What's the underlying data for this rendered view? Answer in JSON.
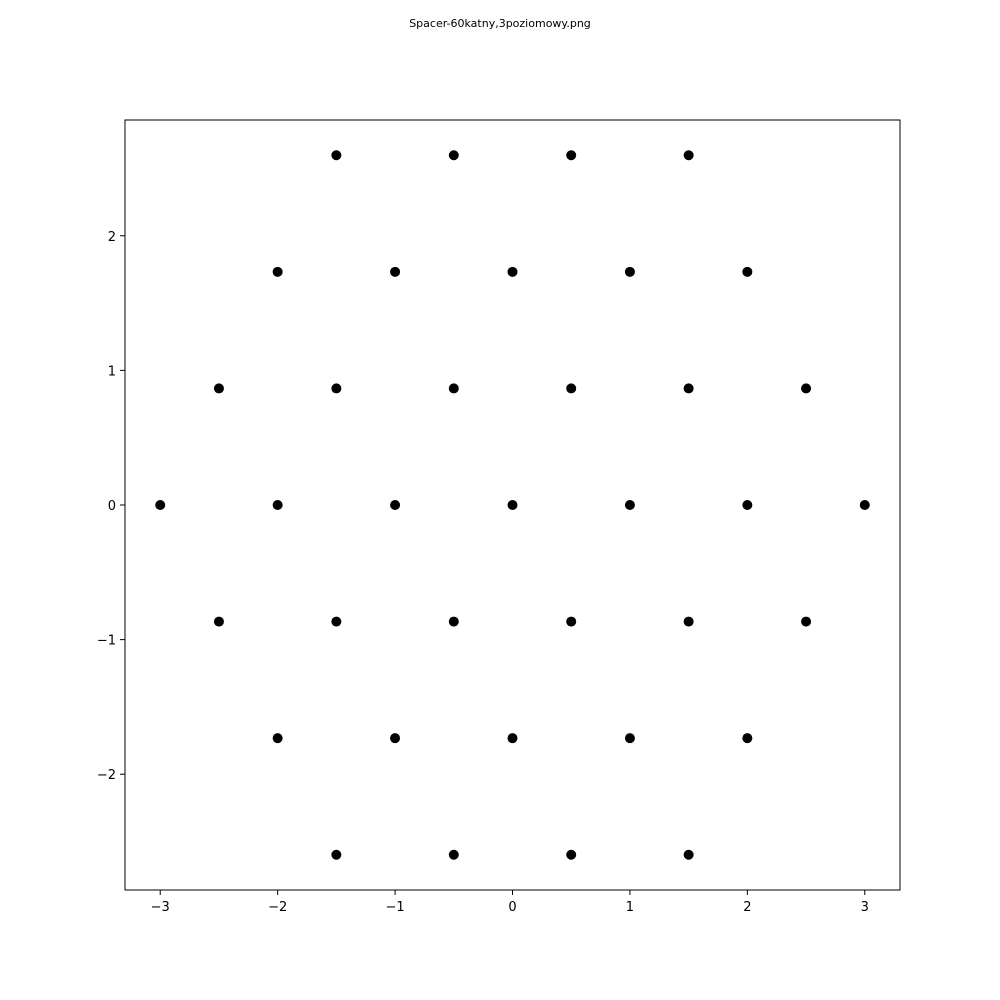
{
  "chart_data": {
    "type": "scatter",
    "title": "Spacer-60katny,3poziomowy.png",
    "xlabel": "",
    "ylabel": "",
    "xlim": [
      -3.3,
      3.3
    ],
    "ylim": [
      -2.86,
      2.86
    ],
    "grid": false,
    "marker_color": "#000000",
    "x_ticks": [
      {
        "value": -3,
        "label": "−3"
      },
      {
        "value": -2,
        "label": "−2"
      },
      {
        "value": -1,
        "label": "−1"
      },
      {
        "value": 0,
        "label": "0"
      },
      {
        "value": 1,
        "label": "1"
      },
      {
        "value": 2,
        "label": "2"
      },
      {
        "value": 3,
        "label": "3"
      }
    ],
    "y_ticks": [
      {
        "value": -2,
        "label": "−2"
      },
      {
        "value": -1,
        "label": "−1"
      },
      {
        "value": 0,
        "label": "0"
      },
      {
        "value": 1,
        "label": "1"
      },
      {
        "value": 2,
        "label": "2"
      }
    ],
    "points": [
      {
        "x": -1.5,
        "y": 2.598
      },
      {
        "x": -0.5,
        "y": 2.598
      },
      {
        "x": 0.5,
        "y": 2.598
      },
      {
        "x": 1.5,
        "y": 2.598
      },
      {
        "x": -2,
        "y": 1.732
      },
      {
        "x": -1,
        "y": 1.732
      },
      {
        "x": 0,
        "y": 1.732
      },
      {
        "x": 1,
        "y": 1.732
      },
      {
        "x": 2,
        "y": 1.732
      },
      {
        "x": -2.5,
        "y": 0.866
      },
      {
        "x": -1.5,
        "y": 0.866
      },
      {
        "x": -0.5,
        "y": 0.866
      },
      {
        "x": 0.5,
        "y": 0.866
      },
      {
        "x": 1.5,
        "y": 0.866
      },
      {
        "x": 2.5,
        "y": 0.866
      },
      {
        "x": -3,
        "y": 0
      },
      {
        "x": -2,
        "y": 0
      },
      {
        "x": -1,
        "y": 0
      },
      {
        "x": 0,
        "y": 0
      },
      {
        "x": 1,
        "y": 0
      },
      {
        "x": 2,
        "y": 0
      },
      {
        "x": 3,
        "y": 0
      },
      {
        "x": -2.5,
        "y": -0.866
      },
      {
        "x": -1.5,
        "y": -0.866
      },
      {
        "x": -0.5,
        "y": -0.866
      },
      {
        "x": 0.5,
        "y": -0.866
      },
      {
        "x": 1.5,
        "y": -0.866
      },
      {
        "x": 2.5,
        "y": -0.866
      },
      {
        "x": -2,
        "y": -1.732
      },
      {
        "x": -1,
        "y": -1.732
      },
      {
        "x": 0,
        "y": -1.732
      },
      {
        "x": 1,
        "y": -1.732
      },
      {
        "x": 2,
        "y": -1.732
      },
      {
        "x": -1.5,
        "y": -2.598
      },
      {
        "x": -0.5,
        "y": -2.598
      },
      {
        "x": 0.5,
        "y": -2.598
      },
      {
        "x": 1.5,
        "y": -2.598
      }
    ]
  }
}
